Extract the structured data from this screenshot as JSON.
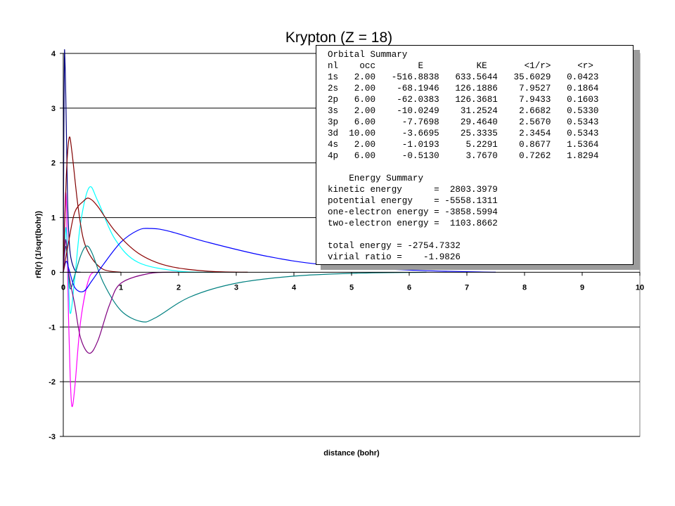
{
  "chart_data": {
    "type": "line",
    "title": "Krypton (Z = 18)",
    "xlabel": "distance (bohr)",
    "ylabel": "rR(r) (1/sqrt(bohr))",
    "xlim": [
      0,
      10
    ],
    "ylim": [
      -3,
      4
    ],
    "x_ticks": [
      "0",
      "1",
      "2",
      "3",
      "4",
      "5",
      "6",
      "7",
      "8",
      "9",
      "10"
    ],
    "y_ticks": [
      "4",
      "3",
      "2",
      "1",
      "0",
      "-1",
      "-2",
      "-3"
    ],
    "grid": "horizontal major",
    "legend": "none",
    "series": [
      {
        "color": "#000080",
        "points": [
          [
            0,
            0
          ],
          [
            0.01,
            2.6
          ],
          [
            0.02,
            3.9
          ],
          [
            0.025,
            4.0
          ],
          [
            0.04,
            3.4
          ],
          [
            0.06,
            2.2
          ],
          [
            0.08,
            1.1
          ],
          [
            0.12,
            0.35
          ],
          [
            0.2,
            0.04
          ],
          [
            0.3,
            0
          ]
        ]
      },
      {
        "color": "#FF00FF",
        "points": [
          [
            0,
            0
          ],
          [
            0.03,
            1.2
          ],
          [
            0.045,
            1.45
          ],
          [
            0.06,
            1.0
          ],
          [
            0.09,
            -0.8
          ],
          [
            0.12,
            -1.9
          ],
          [
            0.15,
            -2.45
          ],
          [
            0.2,
            -2.1
          ],
          [
            0.3,
            -0.9
          ],
          [
            0.45,
            -0.1
          ],
          [
            0.6,
            0
          ]
        ]
      },
      {
        "color": "#00FFFF",
        "points": [
          [
            0,
            0
          ],
          [
            0.03,
            0.6
          ],
          [
            0.05,
            0.8
          ],
          [
            0.08,
            0.2
          ],
          [
            0.12,
            -0.75
          ],
          [
            0.2,
            -0.1
          ],
          [
            0.3,
            0.9
          ],
          [
            0.45,
            1.55
          ],
          [
            0.6,
            1.3
          ],
          [
            0.9,
            0.6
          ],
          [
            1.3,
            0.18
          ],
          [
            2,
            0.02
          ],
          [
            2.6,
            0
          ]
        ]
      },
      {
        "color": "#800000",
        "points": [
          [
            0,
            0
          ],
          [
            0.05,
            1.7
          ],
          [
            0.1,
            2.45
          ],
          [
            0.15,
            2.2
          ],
          [
            0.25,
            1.25
          ],
          [
            0.35,
            0.6
          ],
          [
            0.5,
            0.25
          ],
          [
            0.7,
            0.05
          ],
          [
            1,
            0
          ]
        ]
      },
      {
        "color": "#008080",
        "points": [
          [
            0,
            0
          ],
          [
            0.03,
            0.4
          ],
          [
            0.05,
            0.45
          ],
          [
            0.08,
            0.15
          ],
          [
            0.12,
            -0.3
          ],
          [
            0.2,
            -0.05
          ],
          [
            0.3,
            0.3
          ],
          [
            0.4,
            0.48
          ],
          [
            0.5,
            0.35
          ],
          [
            0.7,
            -0.2
          ],
          [
            1,
            -0.7
          ],
          [
            1.35,
            -0.9
          ],
          [
            1.6,
            -0.83
          ],
          [
            2.2,
            -0.45
          ],
          [
            3,
            -0.2
          ],
          [
            4,
            -0.07
          ],
          [
            5,
            -0.02
          ],
          [
            6.3,
            0
          ]
        ]
      },
      {
        "color": "#800080",
        "points": [
          [
            0,
            0
          ],
          [
            0.03,
            0.5
          ],
          [
            0.05,
            0.55
          ],
          [
            0.1,
            -0.05
          ],
          [
            0.2,
            -0.6
          ],
          [
            0.3,
            -1.2
          ],
          [
            0.45,
            -1.48
          ],
          [
            0.6,
            -1.25
          ],
          [
            0.8,
            -0.6
          ],
          [
            1,
            -0.2
          ],
          [
            1.5,
            -0.02
          ],
          [
            2,
            0
          ]
        ]
      },
      {
        "color": "#0000FF",
        "points": [
          [
            0,
            0
          ],
          [
            0.05,
            0.2
          ],
          [
            0.1,
            0.05
          ],
          [
            0.2,
            -0.28
          ],
          [
            0.35,
            -0.35
          ],
          [
            0.5,
            -0.15
          ],
          [
            0.7,
            0.15
          ],
          [
            1,
            0.55
          ],
          [
            1.3,
            0.77
          ],
          [
            1.5,
            0.8
          ],
          [
            1.8,
            0.76
          ],
          [
            2.5,
            0.55
          ],
          [
            3.5,
            0.3
          ],
          [
            4.5,
            0.14
          ],
          [
            6,
            0.04
          ],
          [
            7.5,
            0
          ]
        ]
      },
      {
        "color": "#8B0000",
        "points": [
          [
            0,
            0
          ],
          [
            0.1,
            0.6
          ],
          [
            0.2,
            1.1
          ],
          [
            0.35,
            1.3
          ],
          [
            0.45,
            1.35
          ],
          [
            0.6,
            1.2
          ],
          [
            0.9,
            0.75
          ],
          [
            1.3,
            0.35
          ],
          [
            1.8,
            0.12
          ],
          [
            2.5,
            0.02
          ],
          [
            3.2,
            0
          ]
        ]
      }
    ]
  },
  "summary": {
    "lines": [
      "Orbital Summary",
      "nl    occ        E          KE       <1/r>     <r>",
      "1s   2.00   -516.8838   633.5644   35.6029   0.0423",
      "2s   2.00    -68.1946   126.1886    7.9527   0.1864",
      "2p   6.00    -62.0383   126.3681    7.9433   0.1603",
      "3s   2.00    -10.0249    31.2524    2.6682   0.5330",
      "3p   6.00     -7.7698    29.4640    2.5670   0.5343",
      "3d  10.00     -3.6695    25.3335    2.3454   0.5343",
      "4s   2.00     -1.0193     5.2291    0.8677   1.5364",
      "4p   6.00     -0.5130     3.7670    0.7262   1.8294",
      "",
      "    Energy Summary",
      "kinetic energy      =  2803.3979",
      "potential energy    = -5558.1311",
      "one-electron energy = -3858.5994",
      "two-electron energy =  1103.8662",
      "",
      "total energy = -2754.7332",
      "virial ratio =    -1.9826"
    ]
  }
}
